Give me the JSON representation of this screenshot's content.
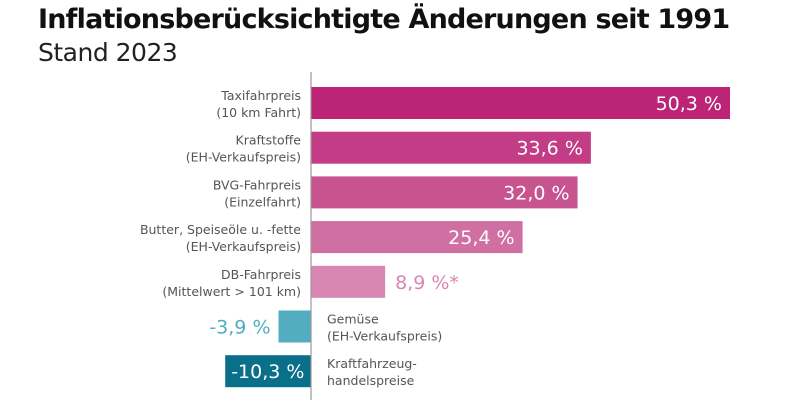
{
  "chart_data": {
    "type": "bar",
    "orientation": "horizontal",
    "title": "Inflationsberücksichtigte Änderungen seit 1991",
    "subtitle": "Stand 2023",
    "categories": [
      [
        "Taxifahrpreis",
        "(10 km Fahrt)"
      ],
      [
        "Kraftstoffe",
        "(EH-Verkaufspreis)"
      ],
      [
        "BVG-Fahrpreis",
        "(Einzelfahrt)"
      ],
      [
        "Butter, Speiseöle u. -fette",
        "(EH-Verkaufspreis)"
      ],
      [
        "DB-Fahrpreis",
        "(Mittelwert > 101 km)"
      ],
      [
        "Gemüse",
        "(EH-Verkaufspreis)"
      ],
      [
        "Kraftfahrzeug-",
        "handelspreise"
      ]
    ],
    "values": [
      50.3,
      33.6,
      32.0,
      25.4,
      8.9,
      -3.9,
      -10.3
    ],
    "value_labels": [
      "50,3 %",
      "33,6 %",
      "32,0 %",
      "25,4 %",
      "8,9 %*",
      "-3,9 %",
      "-10,3 %"
    ],
    "colors": [
      "#bb2477",
      "#c33c86",
      "#c7538f",
      "#d06fa2",
      "#d987b2",
      "#52adc0",
      "#0a6f88"
    ],
    "grid": false,
    "legend": "none"
  }
}
